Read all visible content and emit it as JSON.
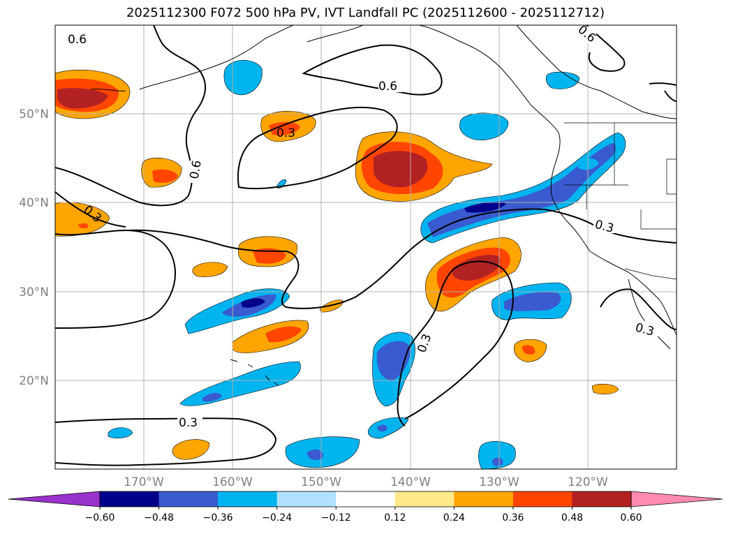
{
  "title": "2025112300 F072 500 hPa PV, IVT Landfall PC (2025112600 - 2025112712)",
  "lon_ticks": [
    "170°W",
    "160°W",
    "150°W",
    "140°W",
    "130°W",
    "120°W"
  ],
  "lat_ticks": [
    "20°N",
    "30°N",
    "40°N",
    "50°N"
  ],
  "colorbar": {
    "ticks": [
      "−0.60",
      "−0.48",
      "−0.36",
      "−0.24",
      "−0.12",
      "0.12",
      "0.24",
      "0.36",
      "0.48",
      "0.60"
    ],
    "colors": {
      "under": "#9932cc",
      "bins": [
        "#00008b",
        "#3a5bcf",
        "#00b4f0",
        "#b0e2ff",
        "#ffffff",
        "#ffe98a",
        "#ffa500",
        "#ff4500",
        "#b22222"
      ],
      "over": "#ff8ab0"
    }
  },
  "contour_labels": [
    "0.6",
    "0.6",
    "0.6",
    "0.6",
    "0.3",
    "0.3",
    "0.3",
    "0.3",
    "0.3",
    "0.3"
  ]
}
